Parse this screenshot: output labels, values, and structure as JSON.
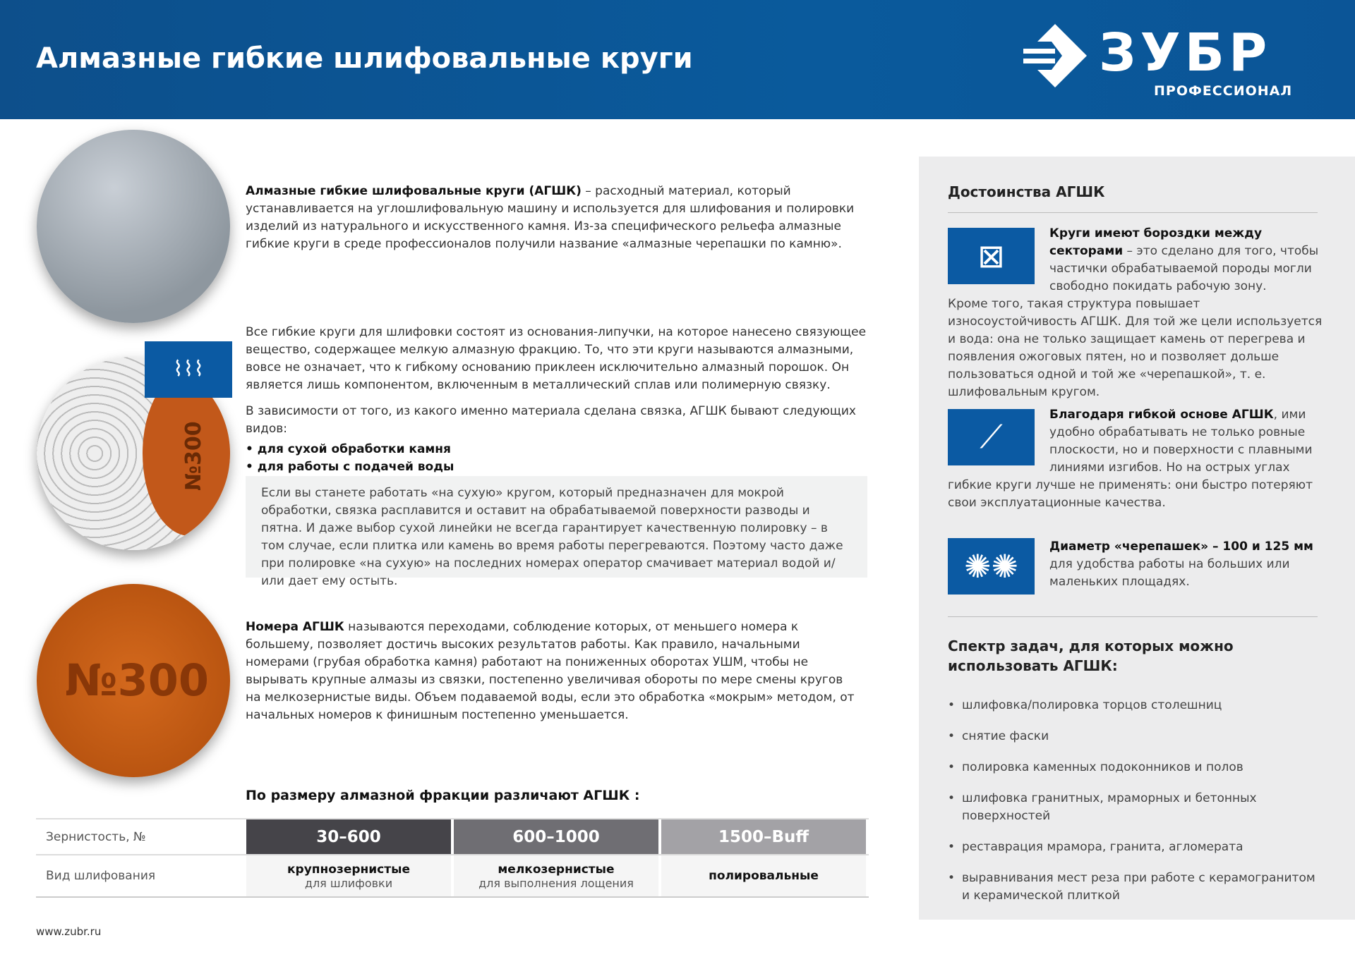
{
  "header": {
    "title": "Алмазные гибкие шлифовальные круги",
    "logo_word": "ЗУБР",
    "logo_sub": "ПРОФЕССИОНАЛ"
  },
  "disc_label": "№300",
  "badge_icon": "diamond-bond-icon",
  "intro": {
    "bold": "Алмазные гибкие шлифовальные круги (АГШК)",
    "text": " – расходный материал, который устанавливается на углошлифовальную машину и используется для шлифования и полировки изделий из натурального и искусственного камня. Из-за специфического рельефа алмазные гибкие круги в среде профессионалов получили название «алмазные черепашки по камню»."
  },
  "composition": {
    "p1": "Все гибкие круги для шлифовки состоят из основания-липучки, на которое нанесено связующее вещество, содержащее мелкую алмазную фракцию. То, что эти круги называются алмазными, вовсе не означает, что к гибкому основанию приклеен исключительно алмазный порошок. Он является лишь компонентом, включенным в металлический сплав или полимерную связку.",
    "p2": "В зависимости от того, из какого именно материала сделана связка, АГШК бывают следующих видов:",
    "types": [
      "для сухой обработки камня",
      "для работы с подачей воды"
    ]
  },
  "note": "Если вы станете работать «на сухую» кругом, который предназначен для мокрой обработки, связка расплавится и оставит на обрабатываемой поверхности разводы и пятна. И даже выбор сухой линейки не всегда гарантирует качественную полировку – в том случае, если плитка или камень во время работы перегреваются. Поэтому часто даже при полировке «на сухую» на последних номерах оператор смачивает материал водой и/или дает ему остыть.",
  "numbers": {
    "bold": "Номера АГШК",
    "text": " называются переходами, соблюдение которых, от меньшего номера к большему, позволяет достичь высоких результатов работы. Как правило, начальными номерами (грубая обработка камня) работают на пониженных оборотах УШМ, чтобы не вырывать крупные алмазы из связки, постепенно увеличивая обороты по мере смены кругов на мелкозернистые виды. Объем подаваемой воды, если это обработка «мокрым» методом, от начальных номеров к финишным постепенно уменьшается."
  },
  "table": {
    "title": "По размеру алмазной фракции различают АГШК :",
    "row1_label": "Зернистость, №",
    "row2_label": "Вид шлифования",
    "columns": [
      {
        "grit": "30–600",
        "type": "крупнозернистые",
        "desc": "для шлифовки",
        "color": "#454449"
      },
      {
        "grit": "600–1000",
        "type": "мелкозернистые",
        "desc": "для выполнения лощения",
        "color": "#6f6e73"
      },
      {
        "grit": "1500–Buff",
        "type": "полировальные",
        "desc": "",
        "color": "#a3a2a6"
      }
    ]
  },
  "footer": {
    "url": "www.zubr.ru"
  },
  "sidebar": {
    "title": "Достоинства АГШК",
    "items": [
      {
        "icon": "grid-grooves-icon",
        "bold": "Круги имеют бороздки между секторами",
        "text": " – это сделано для того, чтобы частички обрабатываемой породы могли свободно покидать рабочую зону.",
        "more": "Кроме того, такая структура повышает износоустойчивость АГШК. Для той же цели используется и вода: она не только защищает камень от перегрева и появления ожоговых пятен, но и позволяет дольше пользоваться одной и той же «черепашкой», т. е. шлифовальным кругом."
      },
      {
        "icon": "flexible-base-icon",
        "bold": "Благодаря гибкой основе АГШК",
        "text": ", ими удобно обрабатывать не только ровные плоскости, но и поверхности с плавными линиями изгибов. Но на острых углах",
        "more": "гибкие круги лучше не применять: они быстро потеряют свои эксплуатационные качества."
      },
      {
        "icon": "two-discs-icon",
        "bold": "Диаметр «черепашек» – 100 и 125 мм",
        "text": " для удобства работы на больших или маленьких площадях.",
        "more": ""
      }
    ],
    "tasks_title": "Спектр задач, для которых можно использовать АГШК:",
    "tasks": [
      "шлифовка/полировка торцов столешниц",
      "снятие фаски",
      "полировка каменных подоконников и полов",
      "шлифовка гранитных, мраморных и бетонных поверхностей",
      "реставрация мрамора, гранита, агломерата",
      "выравнивания мест реза при работе с керамогранитом и керамической плиткой"
    ]
  }
}
